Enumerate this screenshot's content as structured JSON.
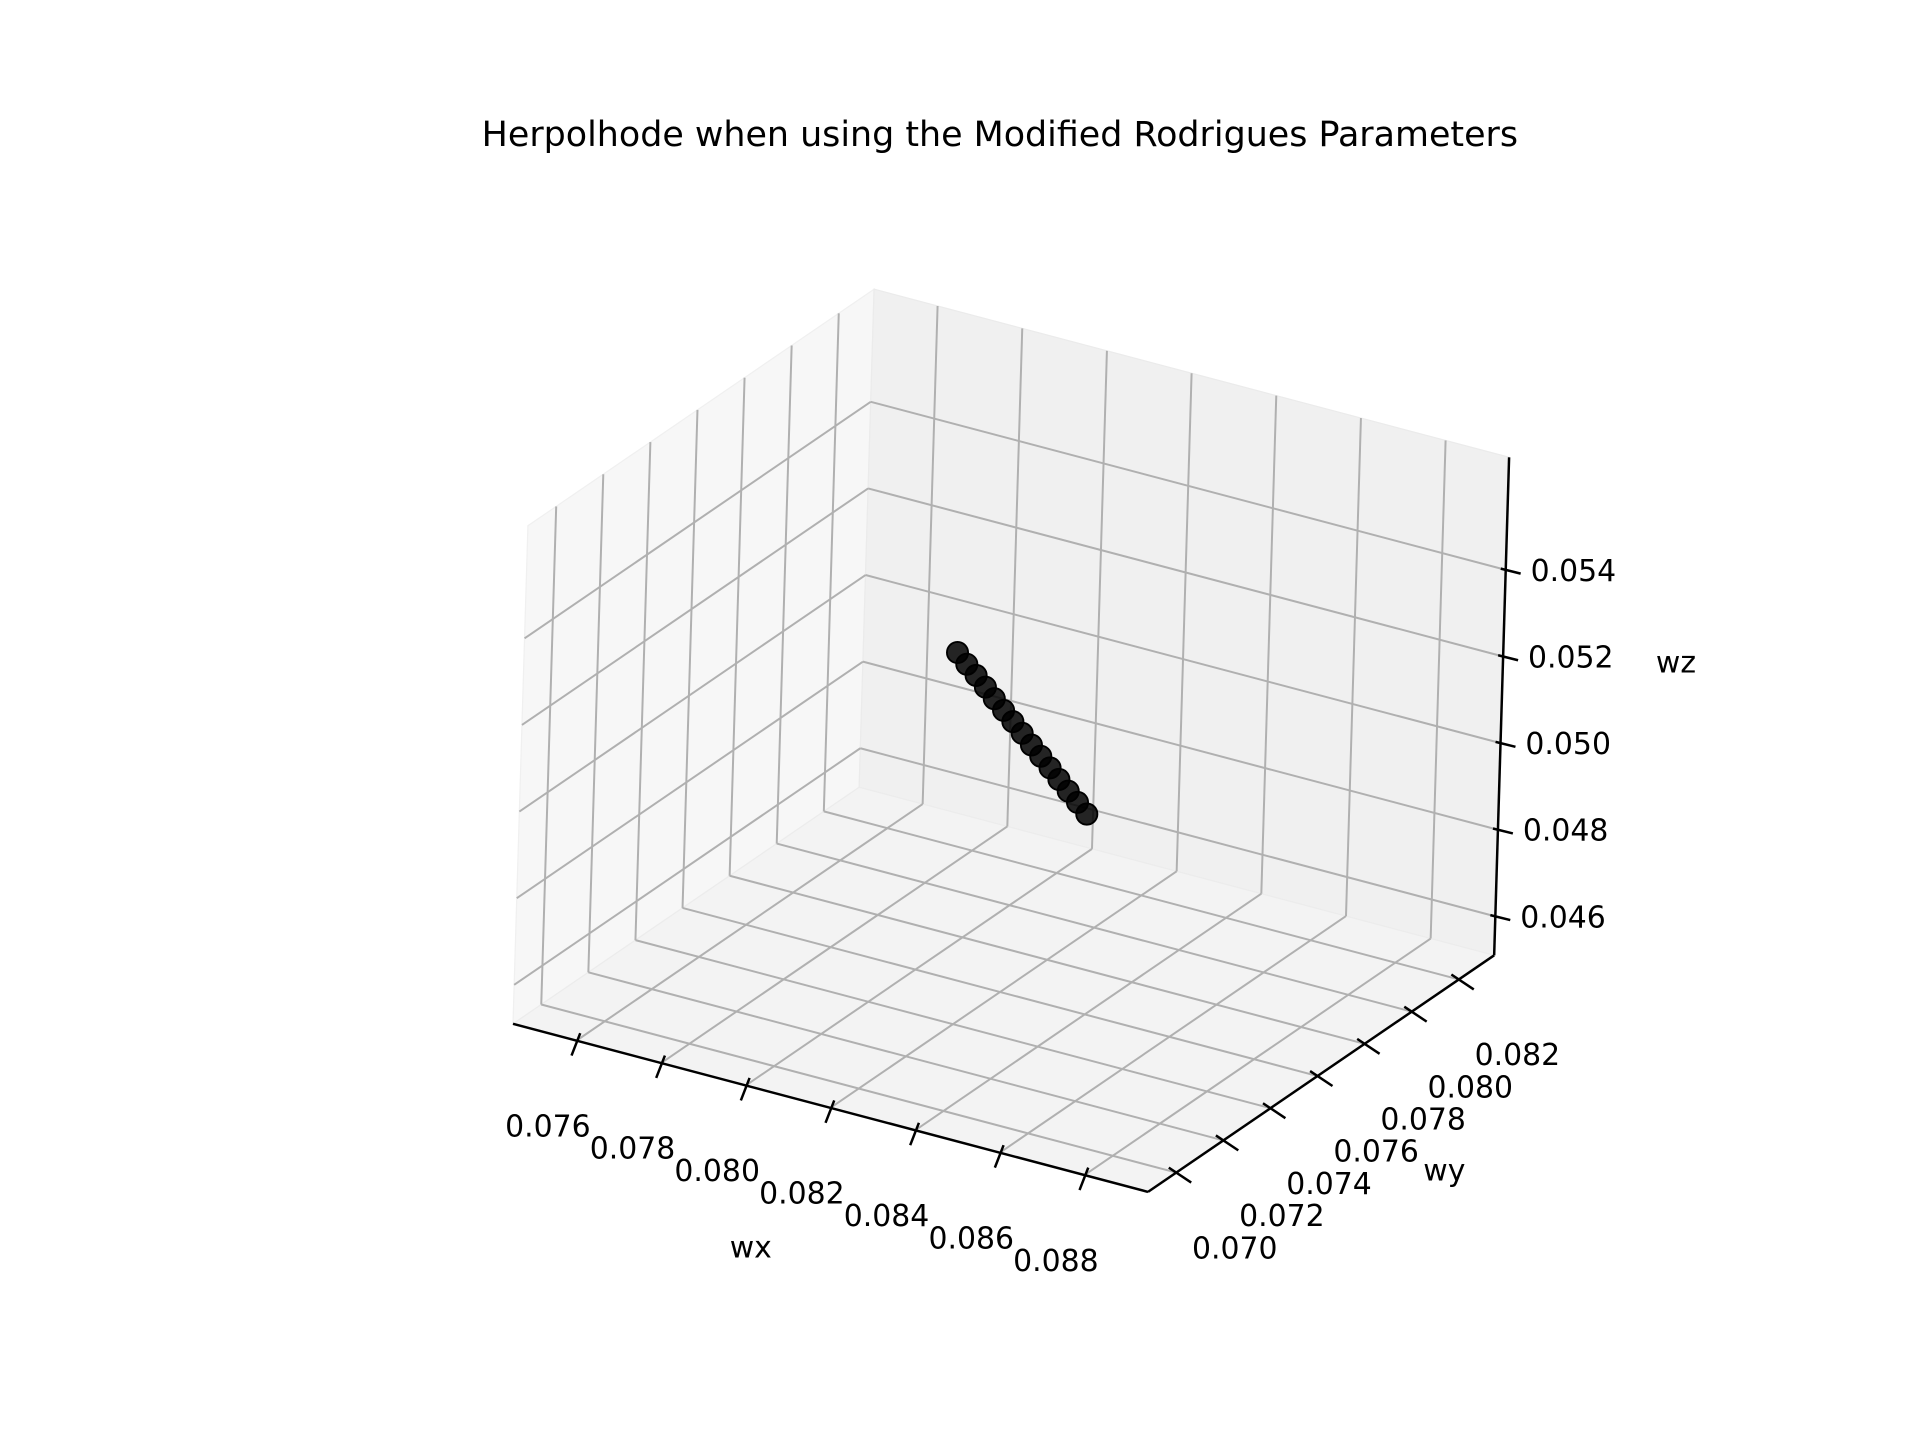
{
  "chart_data": {
    "type": "scatter3d",
    "title": "Herpolhode when using the Modified Rodrigues Parameters",
    "xlabel": "wx",
    "ylabel": "wy",
    "zlabel": "wz",
    "series": [
      {
        "color": "#000000",
        "x": [
          0.0799,
          0.08018,
          0.08046,
          0.08074,
          0.08101,
          0.08129,
          0.08157,
          0.08185,
          0.08213,
          0.08241,
          0.08269,
          0.08296,
          0.08324,
          0.08352,
          0.0838
        ],
        "y": [
          0.0776,
          0.0775,
          0.0774,
          0.0773,
          0.0772,
          0.0771,
          0.077,
          0.0769,
          0.0768,
          0.0767,
          0.0766,
          0.0765,
          0.0764,
          0.0763,
          0.0762
        ],
        "z": [
          0.0518,
          0.05164,
          0.05149,
          0.05133,
          0.05117,
          0.05101,
          0.05086,
          0.0507,
          0.05054,
          0.05039,
          0.05023,
          0.05007,
          0.04991,
          0.04976,
          0.0496
        ]
      }
    ],
    "xlim": [
      0.0745,
      0.0895
    ],
    "ylim": [
      0.0688,
      0.0835
    ],
    "zlim": [
      0.0451,
      0.0566
    ],
    "xticks": [
      0.076,
      0.078,
      {
        "value": 0.08,
        "label": "0.080"
      },
      0.082,
      0.084,
      0.086,
      0.088
    ],
    "yticks": [
      {
        "value": 0.07,
        "label": "0.070"
      },
      0.072,
      0.074,
      0.076,
      0.078,
      {
        "value": 0.08,
        "label": "0.080"
      },
      0.082
    ],
    "zticks": [
      0.046,
      0.048,
      {
        "value": 0.05,
        "label": "0.050"
      },
      0.052,
      0.054
    ],
    "grid": true
  }
}
